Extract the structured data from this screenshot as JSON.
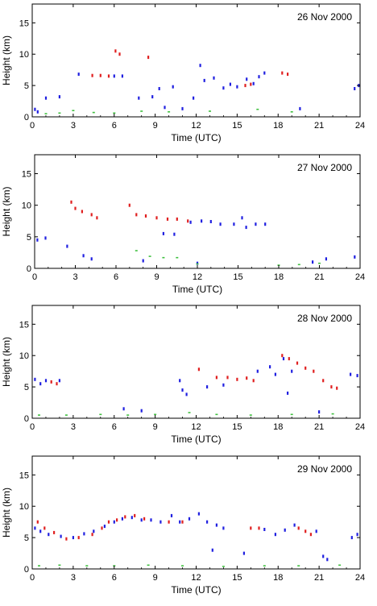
{
  "chart_data": [
    {
      "type": "scatter",
      "title": "26 Nov 2000",
      "xlabel": "Time (UTC)",
      "ylabel": "Height (km)",
      "xlim": [
        0,
        24
      ],
      "ylim": [
        0,
        18
      ],
      "xticks": [
        0,
        3,
        6,
        9,
        12,
        15,
        18,
        21,
        24
      ],
      "yticks": [
        0,
        5,
        10,
        15
      ],
      "grid": false,
      "series": [
        {
          "color": "#e02020",
          "values": [
            [
              4.4,
              6.6
            ],
            [
              5.0,
              6.6
            ],
            [
              5.6,
              6.5
            ],
            [
              6.1,
              10.5
            ],
            [
              6.4,
              10.0
            ],
            [
              8.5,
              9.5
            ],
            [
              15.6,
              5.0
            ],
            [
              16.0,
              5.2
            ],
            [
              18.3,
              7.0
            ],
            [
              18.7,
              6.8
            ]
          ]
        },
        {
          "color": "#2020e0",
          "values": [
            [
              0.2,
              1.2
            ],
            [
              0.4,
              0.8
            ],
            [
              1.0,
              3.0
            ],
            [
              2.0,
              3.2
            ],
            [
              3.4,
              6.8
            ],
            [
              6.0,
              6.5
            ],
            [
              6.6,
              6.5
            ],
            [
              7.8,
              3.0
            ],
            [
              8.8,
              3.2
            ],
            [
              9.3,
              4.5
            ],
            [
              9.7,
              1.5
            ],
            [
              10.3,
              4.8
            ],
            [
              11.0,
              1.3
            ],
            [
              11.8,
              3.0
            ],
            [
              12.3,
              8.2
            ],
            [
              12.6,
              5.8
            ],
            [
              13.3,
              6.2
            ],
            [
              14.0,
              4.6
            ],
            [
              14.5,
              5.2
            ],
            [
              15.0,
              4.8
            ],
            [
              15.7,
              6.0
            ],
            [
              16.2,
              5.3
            ],
            [
              16.6,
              6.4
            ],
            [
              17.0,
              7.0
            ],
            [
              19.6,
              1.3
            ],
            [
              23.6,
              4.5
            ],
            [
              23.9,
              5.0
            ]
          ]
        },
        {
          "color": "#40c040",
          "values": [
            [
              1.0,
              0.5
            ],
            [
              2.0,
              0.6
            ],
            [
              3.0,
              1.0
            ],
            [
              4.5,
              0.7
            ],
            [
              6.0,
              0.6
            ],
            [
              8.0,
              0.9
            ],
            [
              10.0,
              0.8
            ],
            [
              13.0,
              0.9
            ],
            [
              16.5,
              1.2
            ],
            [
              19.0,
              0.8
            ]
          ]
        }
      ]
    },
    {
      "type": "scatter",
      "title": "27 Nov 2000",
      "xlabel": "Time (UTC)",
      "ylabel": "Height (km)",
      "xlim": [
        0,
        24
      ],
      "ylim": [
        0,
        18
      ],
      "xticks": [
        0,
        3,
        6,
        9,
        12,
        15,
        18,
        21,
        24
      ],
      "yticks": [
        0,
        5,
        10,
        15
      ],
      "grid": false,
      "series": [
        {
          "color": "#e02020",
          "values": [
            [
              2.7,
              10.5
            ],
            [
              3.0,
              9.5
            ],
            [
              3.5,
              9.0
            ],
            [
              4.2,
              8.5
            ],
            [
              4.6,
              8.0
            ],
            [
              7.0,
              10.0
            ],
            [
              7.5,
              8.5
            ],
            [
              8.2,
              8.3
            ],
            [
              9.0,
              8.0
            ],
            [
              9.8,
              7.8
            ],
            [
              10.5,
              7.8
            ],
            [
              11.3,
              7.5
            ]
          ]
        },
        {
          "color": "#2020e0",
          "values": [
            [
              0.2,
              4.5
            ],
            [
              0.8,
              4.8
            ],
            [
              2.4,
              3.5
            ],
            [
              3.6,
              2.0
            ],
            [
              4.2,
              1.5
            ],
            [
              9.5,
              5.5
            ],
            [
              10.3,
              5.4
            ],
            [
              11.5,
              7.3
            ],
            [
              12.3,
              7.5
            ],
            [
              13.0,
              7.4
            ],
            [
              13.7,
              7.0
            ],
            [
              14.7,
              7.0
            ],
            [
              15.3,
              8.0
            ],
            [
              15.6,
              6.5
            ],
            [
              16.3,
              7.0
            ],
            [
              17.0,
              7.0
            ],
            [
              20.5,
              1.0
            ],
            [
              21.5,
              1.5
            ],
            [
              23.6,
              1.8
            ],
            [
              8.0,
              1.2
            ],
            [
              12.0,
              0.8
            ]
          ]
        },
        {
          "color": "#40c040",
          "values": [
            [
              7.5,
              2.8
            ],
            [
              8.5,
              1.9
            ],
            [
              9.5,
              1.7
            ],
            [
              10.5,
              1.7
            ],
            [
              12.0,
              0.7
            ],
            [
              18.0,
              0.5
            ],
            [
              19.5,
              0.6
            ],
            [
              21.0,
              0.8
            ]
          ]
        }
      ]
    },
    {
      "type": "scatter",
      "title": "28 Nov 2000",
      "xlabel": "Time (UTC)",
      "ylabel": "Height (km)",
      "xlim": [
        0,
        24
      ],
      "ylim": [
        0,
        18
      ],
      "xticks": [
        0,
        3,
        6,
        9,
        12,
        15,
        18,
        21,
        24
      ],
      "yticks": [
        0,
        5,
        10,
        15
      ],
      "grid": false,
      "series": [
        {
          "color": "#e02020",
          "values": [
            [
              1.4,
              5.8
            ],
            [
              1.8,
              5.5
            ],
            [
              12.2,
              7.8
            ],
            [
              13.5,
              6.5
            ],
            [
              14.3,
              6.5
            ],
            [
              15.0,
              6.2
            ],
            [
              15.7,
              6.4
            ],
            [
              16.2,
              6.0
            ],
            [
              18.3,
              10.0
            ],
            [
              18.8,
              9.5
            ],
            [
              19.4,
              8.8
            ],
            [
              20.0,
              8.0
            ],
            [
              20.6,
              7.5
            ],
            [
              21.3,
              6.0
            ],
            [
              21.9,
              5.0
            ],
            [
              22.3,
              4.8
            ]
          ]
        },
        {
          "color": "#2020e0",
          "values": [
            [
              0.2,
              6.2
            ],
            [
              0.6,
              5.5
            ],
            [
              1.0,
              6.0
            ],
            [
              2.0,
              6.0
            ],
            [
              10.8,
              6.0
            ],
            [
              11.0,
              4.5
            ],
            [
              11.3,
              3.8
            ],
            [
              12.8,
              5.0
            ],
            [
              14.0,
              5.3
            ],
            [
              16.5,
              7.5
            ],
            [
              17.4,
              8.2
            ],
            [
              17.8,
              7.0
            ],
            [
              18.4,
              9.5
            ],
            [
              18.7,
              4.0
            ],
            [
              19.0,
              7.5
            ],
            [
              23.3,
              7.0
            ],
            [
              23.8,
              6.8
            ],
            [
              6.7,
              1.5
            ],
            [
              8.0,
              1.2
            ],
            [
              21.0,
              1.0
            ]
          ]
        },
        {
          "color": "#40c040",
          "values": [
            [
              0.5,
              0.5
            ],
            [
              2.5,
              0.5
            ],
            [
              5.0,
              0.6
            ],
            [
              7.0,
              0.5
            ],
            [
              9.0,
              0.6
            ],
            [
              11.5,
              0.9
            ],
            [
              13.5,
              0.6
            ],
            [
              16.0,
              0.5
            ],
            [
              19.0,
              0.6
            ],
            [
              22.0,
              0.7
            ]
          ]
        }
      ]
    },
    {
      "type": "scatter",
      "title": "29 Nov 2000",
      "xlabel": "Time (UTC)",
      "ylabel": "Height (km)",
      "xlim": [
        0,
        24
      ],
      "ylim": [
        0,
        18
      ],
      "xticks": [
        0,
        3,
        6,
        9,
        12,
        15,
        18,
        21,
        24
      ],
      "yticks": [
        0,
        5,
        10,
        15
      ],
      "grid": false,
      "series": [
        {
          "color": "#e02020",
          "values": [
            [
              0.4,
              7.5
            ],
            [
              0.9,
              6.5
            ],
            [
              1.6,
              5.8
            ],
            [
              2.5,
              4.8
            ],
            [
              3.4,
              5.0
            ],
            [
              4.4,
              5.5
            ],
            [
              5.1,
              6.5
            ],
            [
              5.6,
              7.5
            ],
            [
              6.2,
              7.8
            ],
            [
              6.8,
              8.3
            ],
            [
              7.5,
              8.5
            ],
            [
              8.2,
              8.0
            ],
            [
              10.0,
              7.5
            ],
            [
              11.0,
              7.5
            ],
            [
              16.0,
              6.5
            ],
            [
              16.6,
              6.5
            ],
            [
              19.5,
              6.5
            ],
            [
              20.0,
              6.0
            ],
            [
              20.4,
              5.5
            ]
          ]
        },
        {
          "color": "#2020e0",
          "values": [
            [
              0.2,
              6.5
            ],
            [
              0.6,
              6.0
            ],
            [
              1.2,
              5.5
            ],
            [
              2.1,
              5.2
            ],
            [
              3.0,
              5.0
            ],
            [
              3.8,
              5.6
            ],
            [
              4.5,
              6.0
            ],
            [
              5.3,
              6.8
            ],
            [
              6.0,
              7.5
            ],
            [
              6.6,
              8.0
            ],
            [
              7.3,
              8.2
            ],
            [
              8.0,
              7.8
            ],
            [
              8.7,
              7.8
            ],
            [
              9.4,
              7.5
            ],
            [
              10.2,
              8.5
            ],
            [
              10.8,
              7.5
            ],
            [
              11.5,
              8.0
            ],
            [
              12.2,
              8.8
            ],
            [
              12.8,
              7.5
            ],
            [
              13.5,
              7.0
            ],
            [
              14.0,
              6.5
            ],
            [
              17.0,
              6.3
            ],
            [
              17.8,
              5.5
            ],
            [
              18.5,
              6.2
            ],
            [
              19.2,
              7.0
            ],
            [
              20.8,
              6.0
            ],
            [
              21.3,
              2.0
            ],
            [
              21.6,
              1.5
            ],
            [
              23.4,
              5.0
            ],
            [
              23.8,
              5.5
            ],
            [
              15.5,
              2.5
            ],
            [
              13.2,
              3.0
            ]
          ]
        },
        {
          "color": "#40c040",
          "values": [
            [
              0.5,
              0.5
            ],
            [
              2.0,
              0.6
            ],
            [
              4.0,
              0.5
            ],
            [
              6.0,
              0.5
            ],
            [
              8.5,
              0.6
            ],
            [
              11.0,
              0.5
            ],
            [
              14.0,
              0.4
            ],
            [
              17.0,
              0.5
            ],
            [
              19.5,
              0.5
            ],
            [
              22.5,
              0.6
            ]
          ]
        }
      ]
    }
  ]
}
